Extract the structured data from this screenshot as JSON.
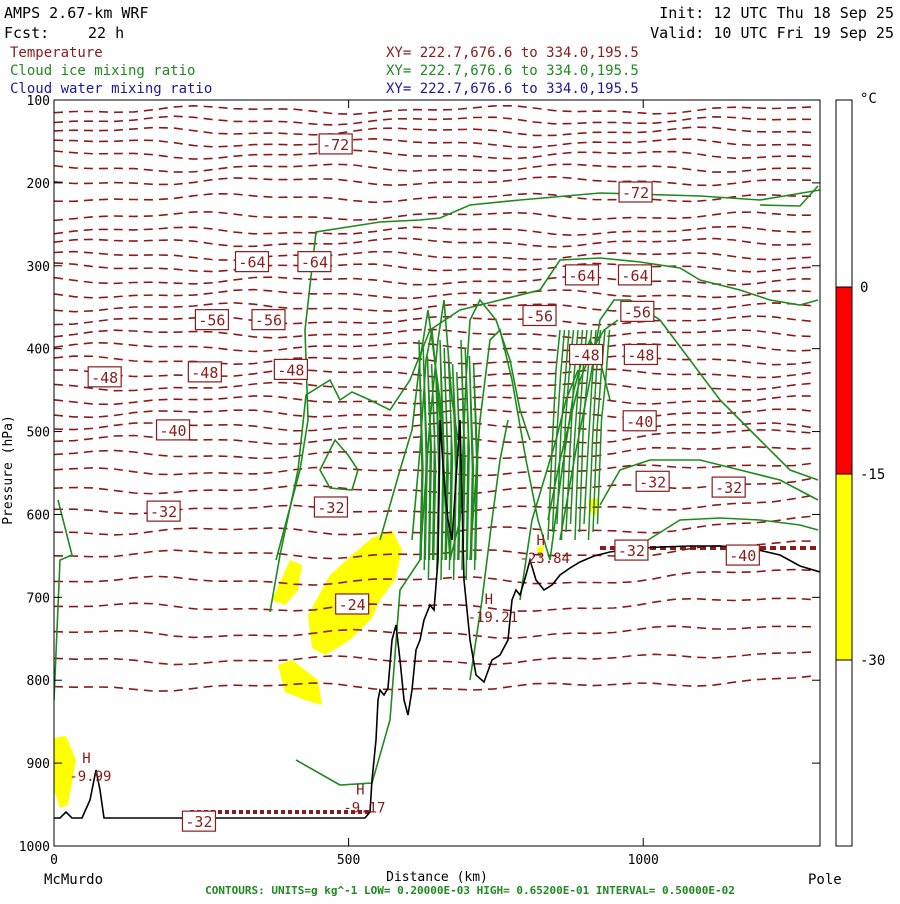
{
  "header": {
    "model": "AMPS 2.67-km WRF",
    "fcst_label": "Fcst:",
    "fcst_value": "22 h",
    "init": "Init: 12 UTC Thu 18 Sep 25",
    "valid": "Valid: 10 UTC Fri 19 Sep 25"
  },
  "fields": [
    {
      "name": "Temperature",
      "xy": "XY= 222.7,676.6 to 334.0,195.5",
      "color": "#8b1a1a"
    },
    {
      "name": "Cloud ice mixing ratio",
      "xy": "XY= 222.7,676.6 to 334.0,195.5",
      "color": "#1f8a1f"
    },
    {
      "name": "Cloud water mixing ratio",
      "xy": "XY= 222.7,676.6 to 334.0,195.5",
      "color": "#1a1a9a"
    }
  ],
  "chart_data": {
    "type": "cross-section",
    "xlabel": "Distance (km)",
    "ylabel": "Pressure (hPa)",
    "xlim": [
      0,
      1300
    ],
    "ylim": [
      1000,
      100
    ],
    "x_ticks": [
      0,
      500,
      1000
    ],
    "y_ticks": [
      100,
      200,
      300,
      400,
      500,
      600,
      700,
      800,
      900,
      1000
    ],
    "left_endpoint": "McMurdo",
    "right_endpoint": "Pole",
    "temperature_levels_c": [
      -72,
      -64,
      -56,
      -48,
      -40,
      -32,
      -24
    ],
    "temperature_labels": [
      {
        "x": 478,
        "p": 153,
        "value": "-72"
      },
      {
        "x": 987,
        "p": 211,
        "value": "-72"
      },
      {
        "x": 336,
        "p": 295,
        "value": "-64"
      },
      {
        "x": 442,
        "p": 295,
        "value": "-64"
      },
      {
        "x": 896,
        "p": 311,
        "value": "-64"
      },
      {
        "x": 986,
        "p": 311,
        "value": "-64"
      },
      {
        "x": 268,
        "p": 365,
        "value": "-56"
      },
      {
        "x": 364,
        "p": 365,
        "value": "-56"
      },
      {
        "x": 824,
        "p": 360,
        "value": "-56"
      },
      {
        "x": 990,
        "p": 355,
        "value": "-56"
      },
      {
        "x": 86,
        "p": 434,
        "value": "-48"
      },
      {
        "x": 256,
        "p": 428,
        "value": "-48"
      },
      {
        "x": 402,
        "p": 425,
        "value": "-48"
      },
      {
        "x": 903,
        "p": 407,
        "value": "-48"
      },
      {
        "x": 996,
        "p": 407,
        "value": "-48"
      },
      {
        "x": 202,
        "p": 498,
        "value": "-40"
      },
      {
        "x": 994,
        "p": 487,
        "value": "-40"
      },
      {
        "x": 1169,
        "p": 649,
        "value": "-40"
      },
      {
        "x": 186,
        "p": 596,
        "value": "-32"
      },
      {
        "x": 470,
        "p": 591,
        "value": "-32"
      },
      {
        "x": 1016,
        "p": 560,
        "value": "-32"
      },
      {
        "x": 1145,
        "p": 567,
        "value": "-32"
      },
      {
        "x": 980,
        "p": 643,
        "value": "-32"
      },
      {
        "x": 246,
        "p": 970,
        "value": "-32"
      },
      {
        "x": 506,
        "p": 708,
        "value": "-24"
      }
    ],
    "extrema": [
      {
        "x": 520,
        "p": 945,
        "type": "H",
        "value": "-9.17"
      },
      {
        "x": 738,
        "p": 715,
        "type": "H",
        "value": "-19.21"
      },
      {
        "x": 826,
        "p": 644,
        "type": "H",
        "value": "-23.84"
      },
      {
        "x": 55,
        "p": 907,
        "type": "H",
        "value": "-9.99"
      }
    ],
    "color_bar": {
      "unit": "°C",
      "ticks": [
        "0",
        "-15",
        "-30"
      ],
      "bands": [
        {
          "from": -30,
          "to": -15,
          "color": "#ffff00"
        },
        {
          "from": -15,
          "to": 0,
          "color": "#ff0000"
        }
      ]
    },
    "contour_info": "CONTOURS:  UNITS=g kg^-1  LOW= 0.20000E-03  HIGH= 0.65200E-01  INTERVAL= 0.50000E-02"
  }
}
